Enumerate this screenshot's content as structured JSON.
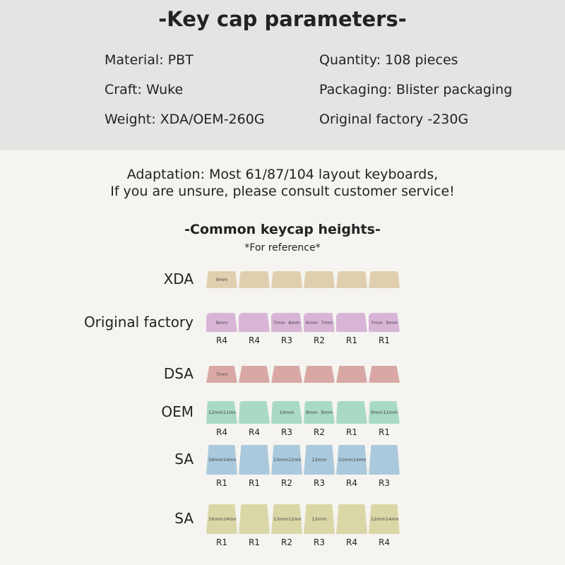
{
  "header": {
    "title": "-Key cap parameters-",
    "params": [
      [
        "Material: PBT",
        "Quantity: 108 pieces"
      ],
      [
        "Craft: Wuke",
        "Packaging: Blister packaging"
      ],
      [
        "Weight: XDA/OEM-260G",
        "Original factory -230G"
      ]
    ]
  },
  "adaptation": [
    "Adaptation: Most 61/87/104 layout keyboards,",
    "If you are unsure, please consult customer service!"
  ],
  "heights": {
    "title": "-Common keycap heights-",
    "note": "*For reference*",
    "profiles": [
      {
        "name": "XDA",
        "color": "#e0cfae",
        "keys": [
          {
            "marks": [
              "9mm"
            ]
          },
          {},
          {},
          {},
          {},
          {}
        ]
      },
      {
        "name": "Original factory",
        "color": "#d8b5d7",
        "keys": [
          {
            "row": "R4",
            "marks": [
              "9mm"
            ]
          },
          {
            "row": "R4"
          },
          {
            "row": "R3",
            "marks": [
              "7mm",
              "8mm"
            ]
          },
          {
            "row": "R2",
            "marks": [
              "6mm",
              "7mm"
            ]
          },
          {
            "row": "R1"
          },
          {
            "row": "R1",
            "marks": [
              "7mm",
              "9mm"
            ]
          }
        ]
      },
      {
        "name": "DSA",
        "color": "#d9a8a4",
        "keys": [
          {
            "marks": [
              "7mm"
            ]
          },
          {},
          {},
          {},
          {},
          {}
        ]
      },
      {
        "name": "OEM",
        "color": "#a9dac5",
        "keys": [
          {
            "row": "R4",
            "marks": [
              "12mm",
              "11mm"
            ]
          },
          {
            "row": "R4"
          },
          {
            "row": "R3",
            "marks": [
              "10mm"
            ]
          },
          {
            "row": "R2",
            "marks": [
              "8mm",
              "9mm"
            ]
          },
          {
            "row": "R1"
          },
          {
            "row": "R1",
            "marks": [
              "9mm",
              "11mm"
            ]
          }
        ]
      },
      {
        "name": "SA",
        "color": "#aac9dc",
        "keys": [
          {
            "row": "R1",
            "marks": [
              "16mm",
              "14mm"
            ]
          },
          {
            "row": "R1"
          },
          {
            "row": "R2",
            "marks": [
              "13mm",
              "12mm"
            ]
          },
          {
            "row": "R3",
            "marks": [
              "12mm"
            ]
          },
          {
            "row": "R4",
            "marks": [
              "12mm",
              "14mm"
            ]
          },
          {
            "row": "R3"
          }
        ]
      },
      {
        "name": "SA",
        "color": "#dad7a7",
        "keys": [
          {
            "row": "R1",
            "marks": [
              "16mm",
              "14mm"
            ]
          },
          {
            "row": "R1"
          },
          {
            "row": "R2",
            "marks": [
              "13mm",
              "12mm"
            ]
          },
          {
            "row": "R3",
            "marks": [
              "12mm"
            ]
          },
          {
            "row": "R4"
          },
          {
            "row": "R4",
            "marks": [
              "12mm",
              "14mm"
            ]
          }
        ]
      }
    ]
  }
}
